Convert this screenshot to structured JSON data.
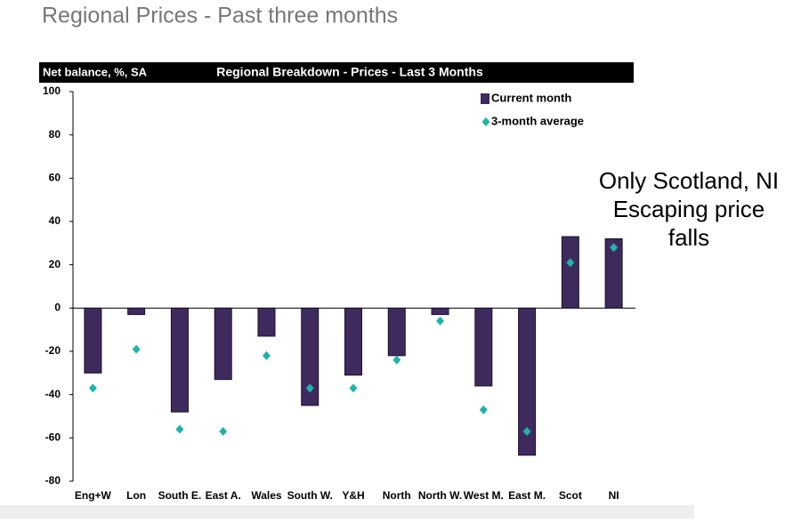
{
  "page_title": "Regional Prices - Past three months",
  "chart_data": {
    "type": "bar",
    "header_left": "Net balance, %, SA",
    "title": "Regional Breakdown - Prices - Last 3 Months",
    "categories": [
      "Eng+W",
      "Lon",
      "South E.",
      "East A.",
      "Wales",
      "South W.",
      "Y&H",
      "North",
      "North W.",
      "West M.",
      "East M.",
      "Scot",
      "NI"
    ],
    "series": [
      {
        "name": "Current month",
        "color": "#3f2a5e",
        "marker": "bar",
        "values": [
          -30,
          -3,
          -48,
          -33,
          -13,
          -45,
          -31,
          -22,
          -3,
          -36,
          -68,
          33,
          32
        ]
      },
      {
        "name": "3-month average",
        "color": "#1fb3aa",
        "marker": "diamond",
        "values": [
          -37,
          -19,
          -56,
          -57,
          -22,
          -37,
          -37,
          -24,
          -6,
          -47,
          -57,
          21,
          28
        ]
      }
    ],
    "ylim": [
      -80,
      100
    ],
    "yticks": [
      -80,
      -60,
      -40,
      -20,
      0,
      20,
      40,
      60,
      80,
      100
    ],
    "legend": "top-right",
    "annotation": [
      "Only Scotland, NI",
      "Escaping price",
      "falls"
    ]
  }
}
